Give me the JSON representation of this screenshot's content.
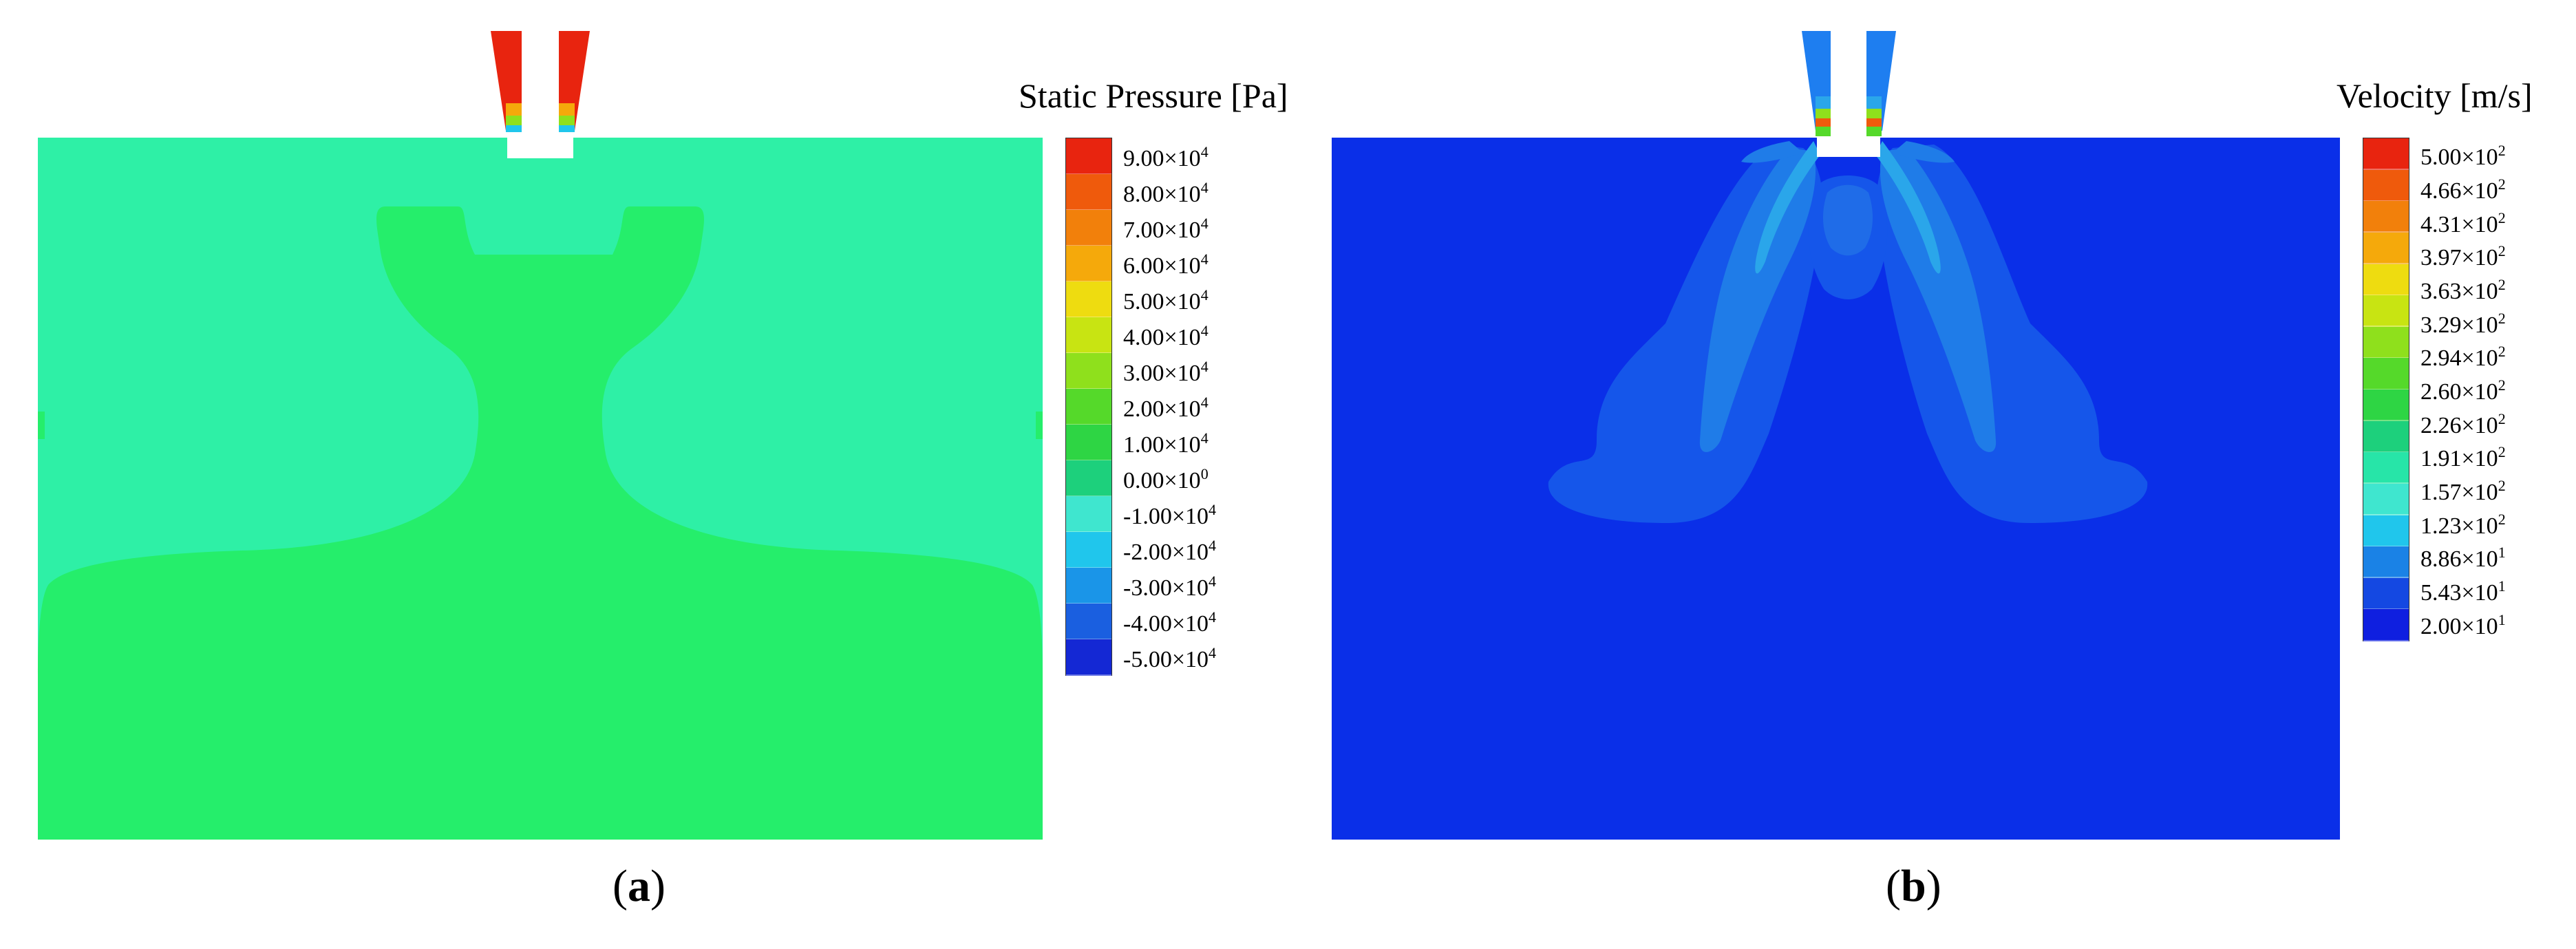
{
  "panel_a": {
    "caption_open": "(",
    "caption_letter": "a",
    "caption_close": ")",
    "legend": {
      "title": "Static Pressure [Pa]",
      "ticks": [
        {
          "m": "9.00",
          "e": "4"
        },
        {
          "m": "8.00",
          "e": "4"
        },
        {
          "m": "7.00",
          "e": "4"
        },
        {
          "m": "6.00",
          "e": "4"
        },
        {
          "m": "5.00",
          "e": "4"
        },
        {
          "m": "4.00",
          "e": "4"
        },
        {
          "m": "3.00",
          "e": "4"
        },
        {
          "m": "2.00",
          "e": "4"
        },
        {
          "m": "1.00",
          "e": "4"
        },
        {
          "m": "0.00",
          "e": "0"
        },
        {
          "m": "-1.00",
          "e": "4"
        },
        {
          "m": "-2.00",
          "e": "4"
        },
        {
          "m": "-3.00",
          "e": "4"
        },
        {
          "m": "-4.00",
          "e": "4"
        },
        {
          "m": "-5.00",
          "e": "4"
        }
      ],
      "colors": [
        "#e8240f",
        "#ef5a0c",
        "#f2800b",
        "#f5a90b",
        "#eedc10",
        "#c8e412",
        "#8fe01c",
        "#55d92a",
        "#2ed544",
        "#1dd07c",
        "#3fe6cf",
        "#20c6ec",
        "#1a95e8",
        "#1a5fe0",
        "#1428d4"
      ]
    },
    "fields": {
      "ambient": "#2ef0a6",
      "jet": "#25ee6b",
      "nozzle_hot": "#e8240f",
      "orifice_gap": "#ffffff"
    }
  },
  "panel_b": {
    "caption_open": "(",
    "caption_letter": "b",
    "caption_close": ")",
    "legend": {
      "title": "Velocity [m/s]",
      "ticks": [
        {
          "m": "5.00",
          "e": "2"
        },
        {
          "m": "4.66",
          "e": "2"
        },
        {
          "m": "4.31",
          "e": "2"
        },
        {
          "m": "3.97",
          "e": "2"
        },
        {
          "m": "3.63",
          "e": "2"
        },
        {
          "m": "3.29",
          "e": "2"
        },
        {
          "m": "2.94",
          "e": "2"
        },
        {
          "m": "2.60",
          "e": "2"
        },
        {
          "m": "2.26",
          "e": "2"
        },
        {
          "m": "1.91",
          "e": "2"
        },
        {
          "m": "1.57",
          "e": "2"
        },
        {
          "m": "1.23",
          "e": "2"
        },
        {
          "m": "8.86",
          "e": "1"
        },
        {
          "m": "5.43",
          "e": "1"
        },
        {
          "m": "2.00",
          "e": "1"
        }
      ],
      "colors": [
        "#e8240f",
        "#ef5a0c",
        "#f2800b",
        "#f5a90b",
        "#eedc10",
        "#c8e412",
        "#8fe01c",
        "#55d92a",
        "#2ed544",
        "#1dd07c",
        "#27e5a8",
        "#3fe6cf",
        "#20c6ec",
        "#1a82e6",
        "#1448e2",
        "#0f1fe0"
      ]
    },
    "fields": {
      "ambient": "#0a2fe8",
      "plume_outer": "#1556ea",
      "plume_mid": "#1f7ce8",
      "plume_inner": "#2aa6ea",
      "nozzle": "#1e7ef0"
    }
  },
  "x_marker": "×10"
}
